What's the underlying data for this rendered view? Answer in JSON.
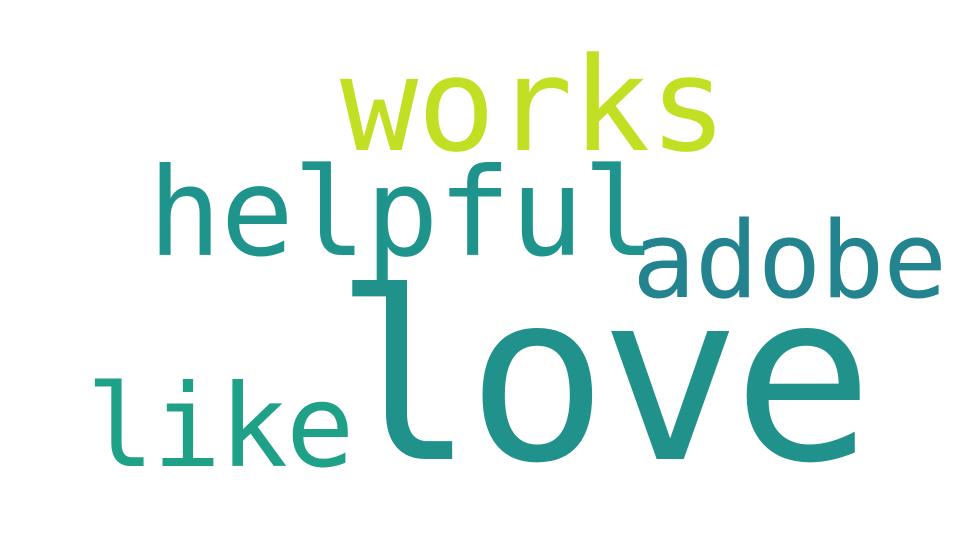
{
  "words": [
    {
      "text": "love",
      "color": "#21918c"
    },
    {
      "text": "works",
      "color": "#c2df23"
    },
    {
      "text": "helpful",
      "color": "#1f948c"
    },
    {
      "text": "adobe",
      "color": "#23838e"
    },
    {
      "text": "like",
      "color": "#1fa187"
    }
  ]
}
